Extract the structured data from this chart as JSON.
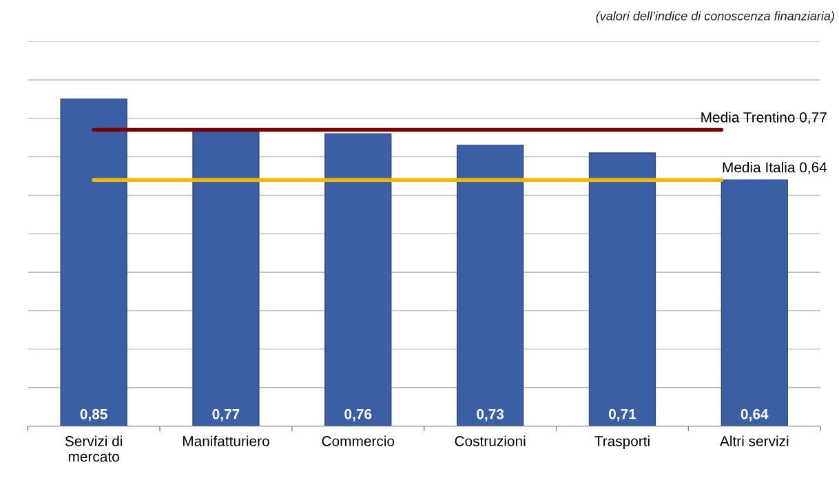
{
  "chart_data": {
    "type": "bar",
    "annotations": [
      "(valori dell’indice di conoscenza finanziaria)"
    ],
    "categories": [
      "Servizi di\nmercato",
      "Manifatturiero",
      "Commercio",
      "Costruzioni",
      "Trasporti",
      "Altri servizi"
    ],
    "values": [
      0.85,
      0.77,
      0.76,
      0.73,
      0.71,
      0.64
    ],
    "value_labels": [
      "0,85",
      "0,77",
      "0,76",
      "0,73",
      "0,71",
      "0,64"
    ],
    "color": "#3a5fa5",
    "ylim": [
      0,
      1.0
    ],
    "yticks": [
      {
        "value": 0.1,
        "label": null
      },
      {
        "value": 0.2,
        "label": null
      },
      {
        "value": 0.3,
        "label": null
      },
      {
        "value": 0.4,
        "label": null
      },
      {
        "value": 0.5,
        "label": null
      },
      {
        "value": 0.6,
        "label": null
      },
      {
        "value": 0.7,
        "label": null
      },
      {
        "value": 0.8,
        "label": null
      },
      {
        "value": 0.9,
        "label": null
      },
      {
        "value": 1.0,
        "label": null
      }
    ],
    "tick_labels": "x",
    "grid": "y",
    "ref_lines": [
      {
        "axis": "y",
        "value": 0.77,
        "label": "Media Trentino 0,77",
        "color": "#7f0000"
      },
      {
        "axis": "y",
        "value": 0.64,
        "label": "Media Italia 0,64",
        "color": "#f5b800"
      }
    ]
  }
}
